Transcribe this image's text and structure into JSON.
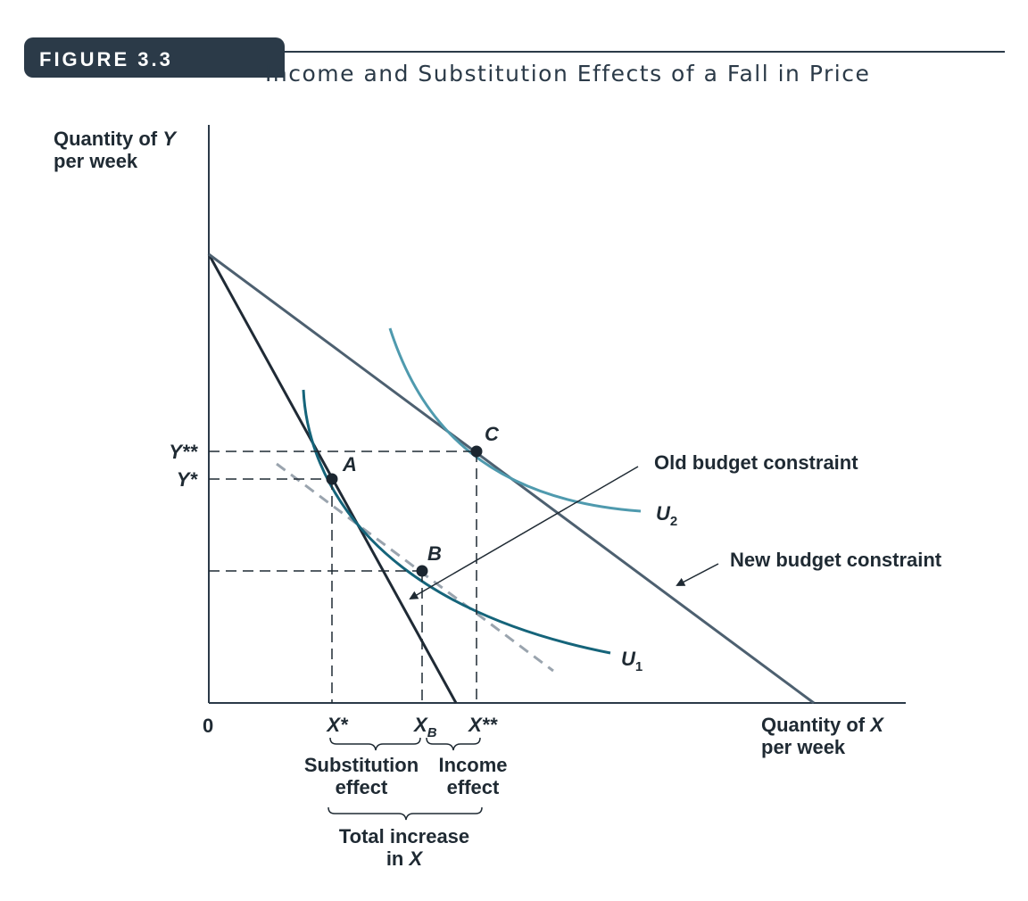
{
  "figure": {
    "number_label": "FIGURE 3.3",
    "title": "Income and Substitution Effects of a Fall in Price"
  },
  "axes": {
    "y_label_line1": "Quantity of ",
    "y_label_var": "Y",
    "y_label_line2": "per week",
    "x_label_line1": "Quantity of ",
    "x_label_var": "X",
    "x_label_line2": "per week",
    "origin": "0"
  },
  "ticks": {
    "y_star_star": "Y**",
    "y_star": "Y*",
    "x_star": "X*",
    "x_b_main": "X",
    "x_b_sub": "B",
    "x_star_star": "X**"
  },
  "points": {
    "a": "A",
    "b": "B",
    "c": "C"
  },
  "curves": {
    "u1_main": "U",
    "u1_sub": "1",
    "u2_main": "U",
    "u2_sub": "2"
  },
  "annotations": {
    "old_budget": "Old budget constraint",
    "new_budget": "New budget constraint",
    "substitution_line1": "Substitution",
    "substitution_line2": "effect",
    "income_line1": "Income",
    "income_line2": "effect",
    "total_line1": "Total increase",
    "total_line2_prefix": "in ",
    "total_line2_var": "X"
  },
  "colors": {
    "header": "#2b3a48",
    "axis": "#2b3a48",
    "old_budget_line": "#1f2a35",
    "new_budget_line": "#4d6070",
    "u1_curve": "#15647a",
    "u2_curve": "#4f9aae",
    "dashed_tangent": "#9aa4ae",
    "point": "#1b2630"
  }
}
